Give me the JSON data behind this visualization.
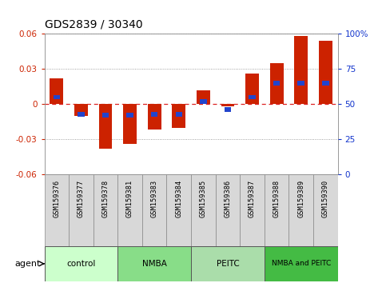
{
  "title": "GDS2839 / 30340",
  "samples": [
    "GSM159376",
    "GSM159377",
    "GSM159378",
    "GSM159381",
    "GSM159383",
    "GSM159384",
    "GSM159385",
    "GSM159386",
    "GSM159387",
    "GSM159388",
    "GSM159389",
    "GSM159390"
  ],
  "log_ratio": [
    0.022,
    -0.01,
    -0.038,
    -0.034,
    -0.022,
    -0.02,
    0.012,
    -0.002,
    0.026,
    0.035,
    0.058,
    0.054
  ],
  "percentile_rank": [
    55,
    43,
    42,
    42,
    43,
    43,
    52,
    46,
    55,
    65,
    65,
    65
  ],
  "groups": [
    {
      "label": "control",
      "start": 0,
      "end": 3,
      "color": "#ccffcc"
    },
    {
      "label": "NMBA",
      "start": 3,
      "end": 6,
      "color": "#88dd88"
    },
    {
      "label": "PEITC",
      "start": 6,
      "end": 9,
      "color": "#aaddaa"
    },
    {
      "label": "NMBA and PEITC",
      "start": 9,
      "end": 12,
      "color": "#44bb44"
    }
  ],
  "ylim": [
    -0.06,
    0.06
  ],
  "yticks": [
    -0.06,
    -0.03,
    0,
    0.03,
    0.06
  ],
  "bar_color_red": "#cc2200",
  "bar_color_blue": "#2244cc",
  "bar_width": 0.55,
  "percentile_bar_width": 0.28,
  "percentile_bar_height": 0.004,
  "background_color": "#ffffff",
  "plot_bg_color": "#ffffff",
  "grid_color": "#888888",
  "title_color": "#000000",
  "left_axis_color": "#cc2200",
  "right_axis_color": "#1133cc"
}
